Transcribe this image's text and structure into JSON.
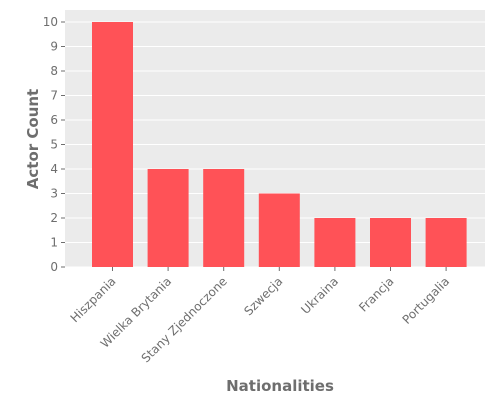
{
  "chart_data": {
    "type": "bar",
    "categories": [
      "Hiszpania",
      "Wielka Brytania",
      "Stany Zjednoczone",
      "Szwecja",
      "Ukraina",
      "Francja",
      "Portugalia"
    ],
    "values": [
      10,
      4,
      4,
      3,
      2,
      2,
      2
    ],
    "xlabel": "Nationalities",
    "ylabel": "Actor Count",
    "ylim": [
      0,
      10.5
    ],
    "yticks": [
      0,
      1,
      2,
      3,
      4,
      5,
      6,
      7,
      8,
      9,
      10
    ],
    "grid": true,
    "colors": {
      "bar": "#ff5257",
      "background": "#ebebeb",
      "grid": "#ffffff",
      "text": "#6e6e6e"
    }
  }
}
